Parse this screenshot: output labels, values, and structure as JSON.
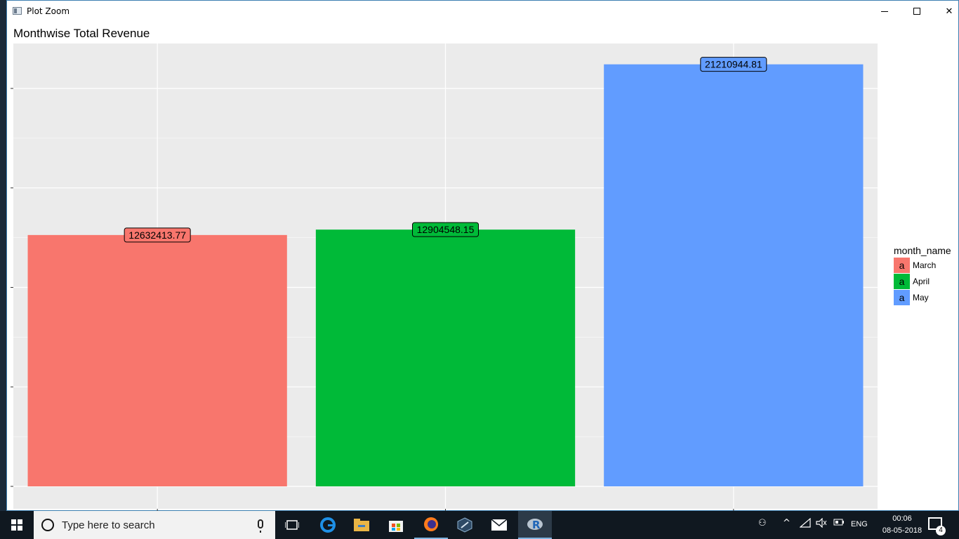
{
  "window": {
    "title": "Plot Zoom",
    "minimize_glyph": "",
    "close_glyph": "✕"
  },
  "chart_data": {
    "type": "bar",
    "title": "Monthwise Total Revenue",
    "categories": [
      "March",
      "April",
      "May"
    ],
    "values": [
      12632413.77,
      12904548.15,
      21210944.81
    ],
    "data_labels": [
      "12632413.77",
      "12904548.15",
      "21210944.81"
    ],
    "colors": [
      "#f8766d",
      "#00ba38",
      "#619cff"
    ],
    "xlabel": "",
    "ylabel": "",
    "ylim": [
      0,
      22300000
    ],
    "y_major_ticks": [
      0,
      5000000,
      10000000,
      15000000,
      20000000
    ],
    "grid": true,
    "panel_background": "#ebebeb",
    "grid_color": "#ffffff",
    "legend": {
      "title": "month_name",
      "placement": "right",
      "key_glyph": "a",
      "entries": [
        "March",
        "April",
        "May"
      ]
    }
  },
  "taskbar": {
    "search_placeholder": "Type here to search",
    "language": "ENG",
    "time": "00:06",
    "date": "08-05-2018",
    "notification_count": "4",
    "icons": [
      "task-view-icon",
      "edge-icon",
      "file-explorer-icon",
      "store-icon",
      "firefox-icon",
      "app-icon",
      "mail-icon",
      "r-icon"
    ]
  }
}
